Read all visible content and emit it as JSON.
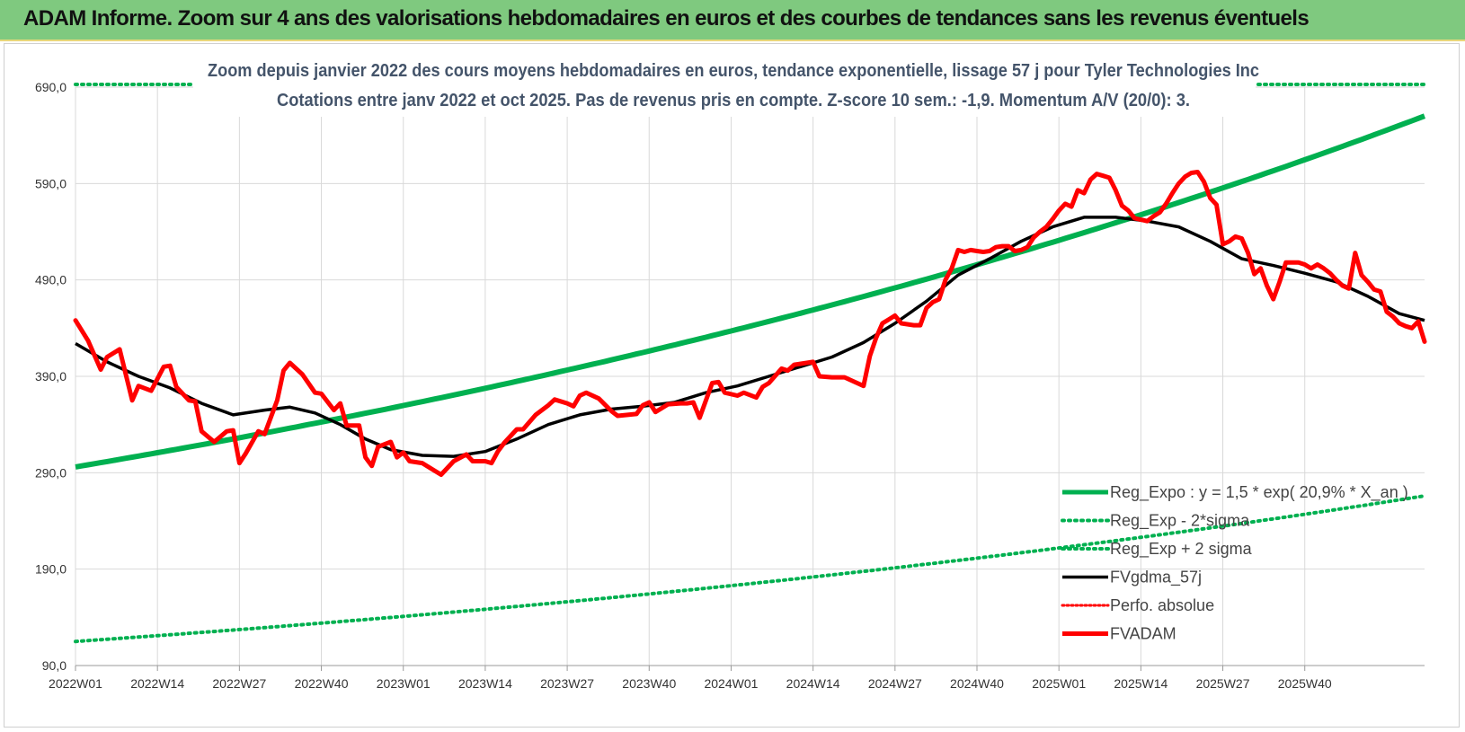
{
  "banner": {
    "title": "ADAM Informe. Zoom sur 4 ans des valorisations hebdomadaires en euros et des courbes de tendances sans les revenus éventuels"
  },
  "colors": {
    "banner_bg": "#7fc97f",
    "green": "#00b050",
    "black": "#000000",
    "red": "#ff0000",
    "dotted_red": "#ff0000",
    "grid": "#d9d9d9"
  },
  "chart_data": {
    "type": "line",
    "title": "Zoom depuis janvier 2022 des cours moyens hebdomadaires en euros, tendance exponentielle, lissage 57 j pour Tyler Technologies Inc",
    "subtitle": "Cotations entre janv 2022 et oct 2025. Pas de revenus pris en compte. Z-score 10 sem.: -1,9.  Momentum A/V (20/0): 3.",
    "xlabel": "",
    "ylabel": "",
    "ylim": [
      90,
      690
    ],
    "yticks": [
      "690,0",
      "590,0",
      "490,0",
      "390,0",
      "290,0",
      "190,0",
      "90,0"
    ],
    "ytick_values": [
      690,
      590,
      490,
      390,
      290,
      190,
      90
    ],
    "xticks": [
      "2022W01",
      "2022W14",
      "2022W27",
      "2022W40",
      "2023W01",
      "2023W14",
      "2023W27",
      "2023W40",
      "2024W01",
      "2024W14",
      "2024W27",
      "2024W40",
      "2025W01",
      "2025W14",
      "2025W27",
      "2025W40"
    ],
    "xtick_indices": [
      0,
      13,
      26,
      39,
      52,
      65,
      78,
      91,
      104,
      117,
      130,
      143,
      156,
      169,
      182,
      195
    ],
    "n_weeks": 200,
    "regression": {
      "a": 1.5,
      "rate_pct": 20.9,
      "start_value": 296,
      "end_value": 660,
      "x_an_start": 6.0,
      "minus_2sigma_start": 115,
      "minus_2sigma_end": 266,
      "plus_2sigma_level": 690
    },
    "fvadam_keypoints": [
      [
        0,
        448
      ],
      [
        2,
        427
      ],
      [
        4,
        397
      ],
      [
        5,
        410
      ],
      [
        7,
        418
      ],
      [
        9,
        365
      ],
      [
        10,
        380
      ],
      [
        12,
        375
      ],
      [
        14,
        400
      ],
      [
        15,
        401
      ],
      [
        16,
        379
      ],
      [
        18,
        365
      ],
      [
        19,
        364
      ],
      [
        20,
        333
      ],
      [
        22,
        322
      ],
      [
        24,
        333
      ],
      [
        25,
        334
      ],
      [
        26,
        300
      ],
      [
        27,
        310
      ],
      [
        29,
        333
      ],
      [
        30,
        330
      ],
      [
        32,
        365
      ],
      [
        33,
        396
      ],
      [
        34,
        404
      ],
      [
        36,
        392
      ],
      [
        38,
        373
      ],
      [
        39,
        372
      ],
      [
        41,
        355
      ],
      [
        42,
        362
      ],
      [
        43,
        339
      ],
      [
        45,
        339
      ],
      [
        46,
        306
      ],
      [
        47,
        297
      ],
      [
        48,
        317
      ],
      [
        50,
        322
      ],
      [
        51,
        306
      ],
      [
        52,
        311
      ],
      [
        53,
        302
      ],
      [
        55,
        300
      ],
      [
        57,
        292
      ],
      [
        58,
        288
      ],
      [
        60,
        302
      ],
      [
        62,
        309
      ],
      [
        63,
        302
      ],
      [
        65,
        302
      ],
      [
        66,
        300
      ],
      [
        67,
        312
      ],
      [
        68,
        321
      ],
      [
        70,
        335
      ],
      [
        71,
        335
      ],
      [
        73,
        350
      ],
      [
        75,
        360
      ],
      [
        76,
        366
      ],
      [
        78,
        362
      ],
      [
        79,
        359
      ],
      [
        80,
        370
      ],
      [
        81,
        373
      ],
      [
        83,
        367
      ],
      [
        85,
        354
      ],
      [
        86,
        349
      ],
      [
        89,
        351
      ],
      [
        90,
        360
      ],
      [
        91,
        363
      ],
      [
        92,
        353
      ],
      [
        94,
        361
      ],
      [
        96,
        362
      ],
      [
        97,
        362
      ],
      [
        98,
        363
      ],
      [
        99,
        347
      ],
      [
        101,
        383
      ],
      [
        102,
        384
      ],
      [
        103,
        373
      ],
      [
        105,
        370
      ],
      [
        106,
        373
      ],
      [
        108,
        368
      ],
      [
        109,
        379
      ],
      [
        110,
        383
      ],
      [
        112,
        398
      ],
      [
        113,
        396
      ],
      [
        114,
        402
      ],
      [
        116,
        404
      ],
      [
        117,
        405
      ],
      [
        118,
        390
      ],
      [
        120,
        389
      ],
      [
        122,
        389
      ],
      [
        124,
        383
      ],
      [
        125,
        380
      ],
      [
        126,
        411
      ],
      [
        127,
        430
      ],
      [
        128,
        445
      ],
      [
        129,
        449
      ],
      [
        130,
        453
      ],
      [
        131,
        445
      ],
      [
        133,
        443
      ],
      [
        134,
        443
      ],
      [
        135,
        461
      ],
      [
        136,
        467
      ],
      [
        137,
        470
      ],
      [
        138,
        490
      ],
      [
        139,
        502
      ],
      [
        140,
        521
      ],
      [
        141,
        519
      ],
      [
        142,
        521
      ],
      [
        143,
        520
      ],
      [
        144,
        519
      ],
      [
        145,
        520
      ],
      [
        146,
        524
      ],
      [
        147,
        525
      ],
      [
        148,
        525
      ],
      [
        149,
        520
      ],
      [
        150,
        521
      ],
      [
        151,
        524
      ],
      [
        152,
        534
      ],
      [
        153,
        540
      ],
      [
        154,
        545
      ],
      [
        155,
        553
      ],
      [
        156,
        562
      ],
      [
        157,
        569
      ],
      [
        158,
        566
      ],
      [
        159,
        583
      ],
      [
        160,
        580
      ],
      [
        161,
        594
      ],
      [
        162,
        600
      ],
      [
        163,
        598
      ],
      [
        164,
        596
      ],
      [
        165,
        583
      ],
      [
        166,
        567
      ],
      [
        167,
        562
      ],
      [
        168,
        554
      ],
      [
        170,
        551
      ],
      [
        171,
        556
      ],
      [
        172,
        560
      ],
      [
        173,
        569
      ],
      [
        174,
        580
      ],
      [
        175,
        590
      ],
      [
        176,
        597
      ],
      [
        177,
        601
      ],
      [
        178,
        602
      ],
      [
        179,
        592
      ],
      [
        180,
        575
      ],
      [
        181,
        568
      ],
      [
        182,
        527
      ],
      [
        183,
        530
      ],
      [
        184,
        535
      ],
      [
        185,
        533
      ],
      [
        186,
        518
      ],
      [
        187,
        496
      ],
      [
        188,
        502
      ],
      [
        189,
        484
      ],
      [
        190,
        470
      ],
      [
        191,
        488
      ],
      [
        192,
        508
      ],
      [
        194,
        508
      ],
      [
        195,
        506
      ],
      [
        196,
        502
      ],
      [
        197,
        506
      ],
      [
        198,
        502
      ],
      [
        199,
        497
      ],
      [
        200,
        490
      ],
      [
        201,
        484
      ],
      [
        202,
        481
      ],
      [
        203,
        518
      ],
      [
        204,
        495
      ],
      [
        205,
        488
      ],
      [
        206,
        480
      ],
      [
        207,
        478
      ],
      [
        208,
        457
      ],
      [
        209,
        452
      ],
      [
        210,
        445
      ],
      [
        211,
        442
      ],
      [
        212,
        440
      ],
      [
        213,
        447
      ],
      [
        214,
        426
      ]
    ],
    "gdma_keypoints": [
      [
        0,
        424
      ],
      [
        5,
        405
      ],
      [
        10,
        390
      ],
      [
        15,
        378
      ],
      [
        20,
        362
      ],
      [
        25,
        350
      ],
      [
        30,
        355
      ],
      [
        34,
        358
      ],
      [
        38,
        352
      ],
      [
        42,
        340
      ],
      [
        46,
        325
      ],
      [
        50,
        314
      ],
      [
        55,
        308
      ],
      [
        60,
        307
      ],
      [
        65,
        312
      ],
      [
        70,
        325
      ],
      [
        75,
        340
      ],
      [
        80,
        350
      ],
      [
        85,
        356
      ],
      [
        90,
        359
      ],
      [
        95,
        363
      ],
      [
        100,
        373
      ],
      [
        105,
        380
      ],
      [
        110,
        390
      ],
      [
        115,
        400
      ],
      [
        120,
        410
      ],
      [
        125,
        425
      ],
      [
        130,
        445
      ],
      [
        135,
        468
      ],
      [
        140,
        495
      ],
      [
        145,
        512
      ],
      [
        150,
        530
      ],
      [
        155,
        545
      ],
      [
        160,
        555
      ],
      [
        165,
        555
      ],
      [
        170,
        551
      ],
      [
        175,
        545
      ],
      [
        180,
        530
      ],
      [
        185,
        512
      ],
      [
        190,
        505
      ],
      [
        195,
        497
      ],
      [
        200,
        488
      ],
      [
        205,
        473
      ],
      [
        210,
        455
      ],
      [
        214,
        448
      ]
    ],
    "legend": [
      {
        "label": "Reg_Expo : y = 1,5 * exp( 20,9% * X_an )",
        "style": "green-solid"
      },
      {
        "label": "Reg_Exp - 2*sigma",
        "style": "green-dotted"
      },
      {
        "label": "Reg_Exp + 2 sigma",
        "style": "green-dotted"
      },
      {
        "label": "FVgdma_57j",
        "style": "black-solid"
      },
      {
        "label": "Perfo. absolue",
        "style": "red-dotted"
      },
      {
        "label": "FVADAM",
        "style": "red-solid"
      }
    ],
    "legend_position": "bottom-right",
    "grid": true
  }
}
